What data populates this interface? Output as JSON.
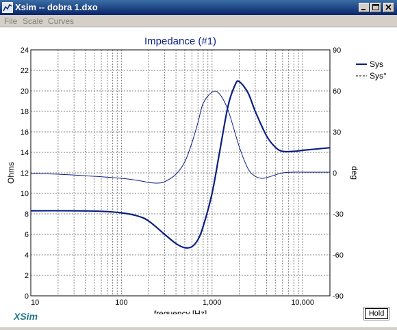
{
  "window": {
    "title": "Xsim -- dobra 1.dxo",
    "buttons": [
      "minimize",
      "maximize",
      "close"
    ]
  },
  "menu": {
    "items": [
      "File",
      "Scale",
      "Curves"
    ]
  },
  "footer": {
    "logo": "XSim",
    "hold_label": "Hold"
  },
  "colors": {
    "title_bar": "#0a246a",
    "curve": "#0a1e82",
    "grid": "#808080",
    "logo": "#1f7a8c"
  },
  "chart_data": {
    "type": "line",
    "title": "Impedance (#1)",
    "xlabel": "frequency [Hz]",
    "ylabel": "Ohms",
    "y2label": "deg",
    "x_scale": "log",
    "xlim": [
      10,
      20000
    ],
    "ylim": [
      0,
      24
    ],
    "y2lim": [
      -90,
      90
    ],
    "x_ticks": [
      10,
      100,
      1000,
      10000
    ],
    "x_tick_labels": [
      "10",
      "100",
      "1,000",
      "10,000"
    ],
    "y_ticks": [
      0,
      2,
      4,
      6,
      8,
      10,
      12,
      14,
      16,
      18,
      20,
      22,
      24
    ],
    "y2_ticks": [
      -90,
      -60,
      -30,
      0,
      30,
      60,
      90
    ],
    "grid": true,
    "legend_position": "top-right",
    "series": [
      {
        "name": "Sys",
        "axis": "left",
        "style": "solid",
        "x": [
          10,
          30,
          60,
          100,
          150,
          200,
          300,
          400,
          500,
          600,
          700,
          800,
          1000,
          1200,
          1500,
          1800,
          2000,
          2500,
          3000,
          4000,
          5000,
          6000,
          8000,
          10000,
          15000,
          20000
        ],
        "y": [
          8.3,
          8.3,
          8.25,
          8.1,
          7.8,
          7.3,
          6.0,
          5.1,
          4.7,
          4.8,
          5.5,
          6.8,
          10.0,
          13.8,
          18.5,
          20.6,
          20.9,
          19.8,
          18.0,
          15.6,
          14.5,
          14.1,
          14.1,
          14.2,
          14.35,
          14.45
        ]
      },
      {
        "name": "Sys°",
        "axis": "right",
        "style": "dashed",
        "x": [
          10,
          20,
          50,
          100,
          150,
          200,
          250,
          300,
          400,
          500,
          600,
          700,
          800,
          1000,
          1200,
          1500,
          2000,
          2500,
          3000,
          3500,
          4000,
          5000,
          6000,
          8000,
          10000,
          20000
        ],
        "y": [
          -0.5,
          -1.0,
          -2.5,
          -4.0,
          -5.5,
          -7.0,
          -7.5,
          -6.5,
          -1.0,
          8.0,
          22.0,
          37.0,
          51.0,
          59.0,
          58.0,
          46.0,
          19.0,
          3.0,
          -2.5,
          -4.0,
          -3.5,
          -1.5,
          0.0,
          0.5,
          0.5,
          0.5
        ]
      }
    ]
  }
}
